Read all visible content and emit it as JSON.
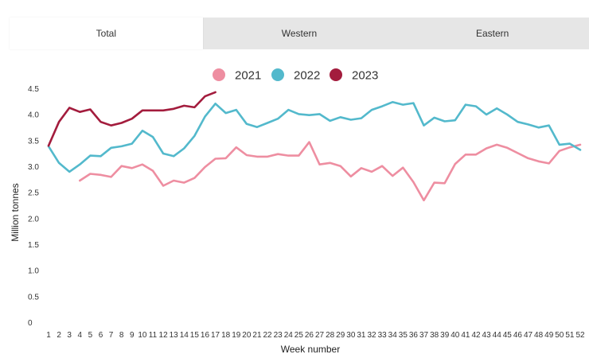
{
  "tabs": [
    {
      "label": "Total",
      "active": true
    },
    {
      "label": "Western",
      "active": false
    },
    {
      "label": "Eastern",
      "active": false
    }
  ],
  "chart_data": {
    "type": "line",
    "xlabel": "Week number",
    "ylabel": "Million tonnes",
    "ylim": [
      0,
      4.5
    ],
    "yticks": [
      "0",
      "0.5",
      "1.0",
      "1.5",
      "2.0",
      "2.5",
      "3.0",
      "3.5",
      "4.0",
      "4.5"
    ],
    "xticks": [
      "1",
      "2",
      "3",
      "4",
      "5",
      "6",
      "7",
      "8",
      "9",
      "10",
      "11",
      "12",
      "13",
      "14",
      "15",
      "16",
      "17",
      "18",
      "19",
      "20",
      "21",
      "22",
      "23",
      "24",
      "25",
      "26",
      "27",
      "28",
      "29",
      "30",
      "31",
      "32",
      "33",
      "34",
      "35",
      "36",
      "37",
      "38",
      "39",
      "40",
      "41",
      "42",
      "43",
      "44",
      "45",
      "46",
      "47",
      "48",
      "49",
      "50",
      "51",
      "52"
    ],
    "grid": false,
    "legend_position": "top-center",
    "series": [
      {
        "name": "2021",
        "color": "#ee8ea1",
        "start_week": 4,
        "values": [
          2.74,
          2.87,
          2.85,
          2.81,
          3.02,
          2.98,
          3.05,
          2.93,
          2.64,
          2.74,
          2.7,
          2.79,
          3.0,
          3.16,
          3.17,
          3.38,
          3.23,
          3.2,
          3.2,
          3.25,
          3.22,
          3.22,
          3.48,
          3.05,
          3.08,
          3.02,
          2.82,
          2.98,
          2.91,
          3.02,
          2.83,
          2.99,
          2.71,
          2.36,
          2.7,
          2.69,
          3.06,
          3.24,
          3.24,
          3.36,
          3.43,
          3.37,
          3.27,
          3.17,
          3.11,
          3.07,
          3.31,
          3.38,
          3.43
        ]
      },
      {
        "name": "2022",
        "color": "#53b9cc",
        "start_week": 1,
        "values": [
          3.4,
          3.08,
          2.91,
          3.05,
          3.22,
          3.21,
          3.37,
          3.4,
          3.45,
          3.7,
          3.58,
          3.26,
          3.21,
          3.36,
          3.6,
          3.97,
          4.22,
          4.04,
          4.1,
          3.83,
          3.77,
          3.85,
          3.93,
          4.1,
          4.02,
          4.0,
          4.02,
          3.89,
          3.96,
          3.91,
          3.94,
          4.1,
          4.17,
          4.25,
          4.2,
          4.23,
          3.8,
          3.95,
          3.88,
          3.9,
          4.2,
          4.17,
          4.01,
          4.13,
          4.01,
          3.87,
          3.82,
          3.76,
          3.8,
          3.43,
          3.45,
          3.33
        ]
      },
      {
        "name": "2023",
        "color": "#a31c3d",
        "start_week": 1,
        "values": [
          3.41,
          3.87,
          4.14,
          4.06,
          4.11,
          3.87,
          3.8,
          3.85,
          3.93,
          4.09,
          4.09,
          4.09,
          4.12,
          4.18,
          4.15,
          4.36,
          4.44
        ]
      }
    ]
  }
}
